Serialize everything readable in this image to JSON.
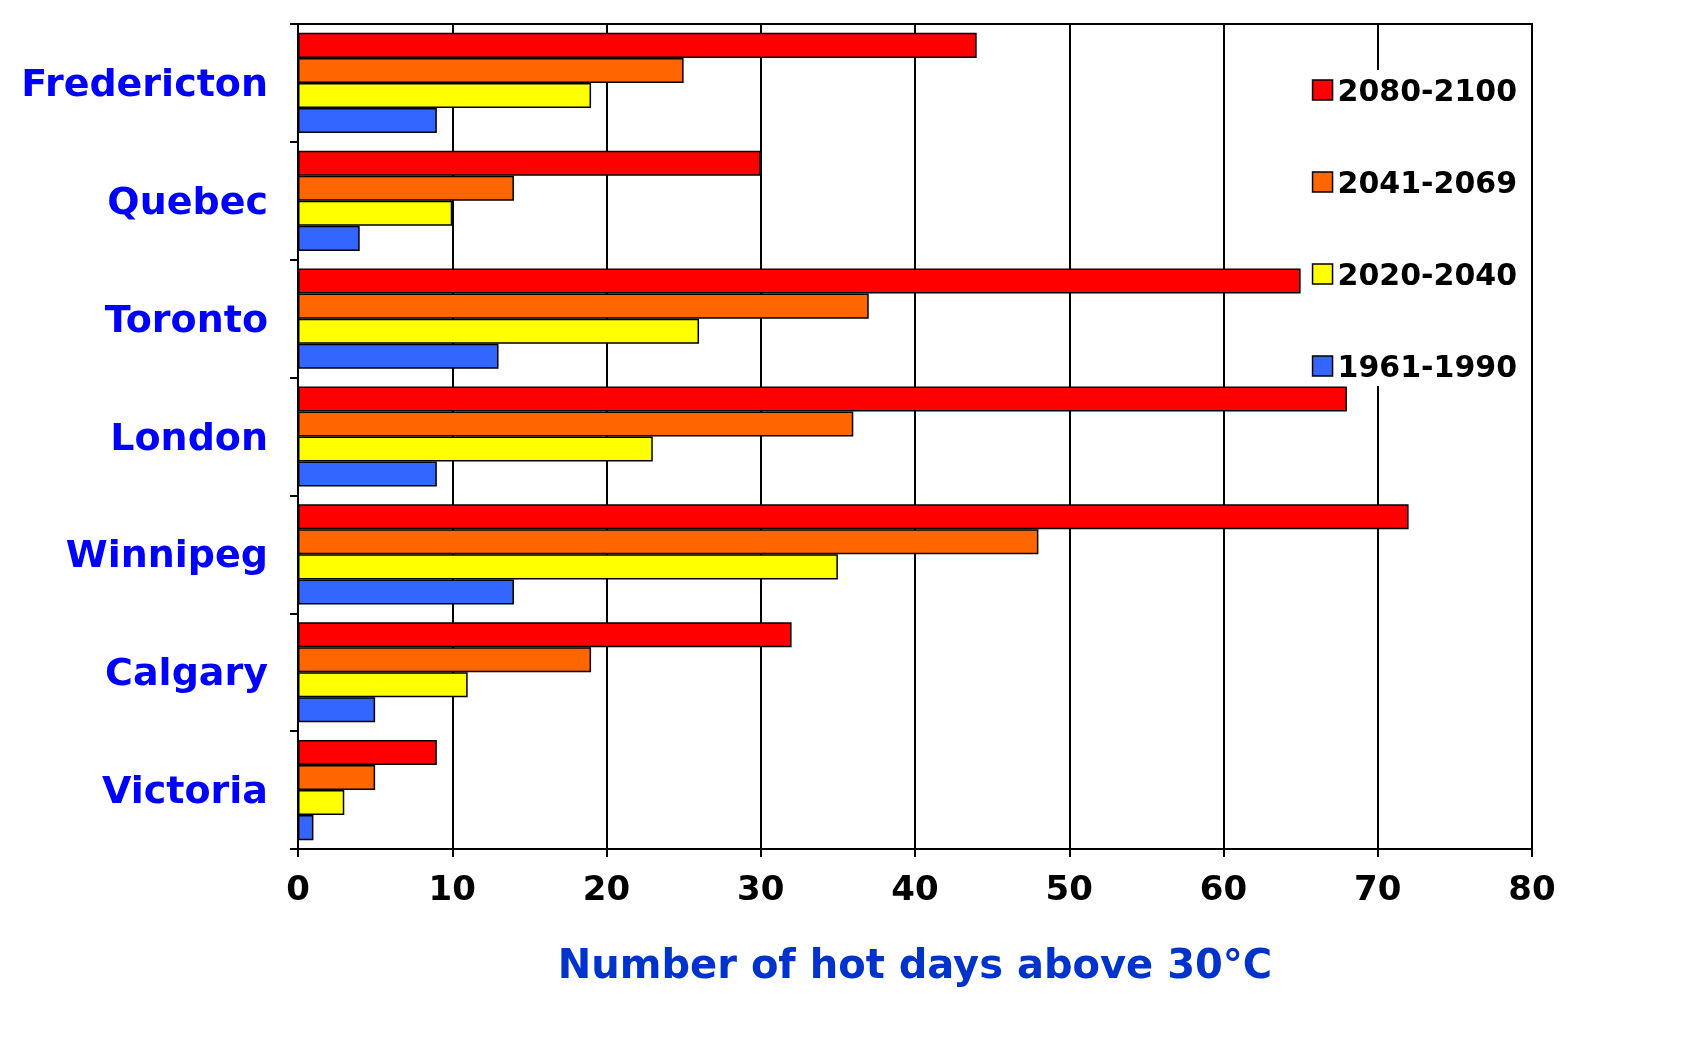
{
  "chart_data": {
    "type": "bar",
    "orientation": "horizontal",
    "xlabel": "Number of hot days above 30°C",
    "categories": [
      "Fredericton",
      "Quebec",
      "Toronto",
      "London",
      "Winnipeg",
      "Calgary",
      "Victoria"
    ],
    "series": [
      {
        "name": "2080-2100",
        "color": "#ff0000",
        "values": [
          44,
          30,
          65,
          68,
          72,
          32,
          9
        ]
      },
      {
        "name": "2041-2069",
        "color": "#ff6600",
        "values": [
          25,
          14,
          37,
          36,
          48,
          19,
          5
        ]
      },
      {
        "name": "2020-2040",
        "color": "#ffff00",
        "values": [
          19,
          10,
          26,
          23,
          35,
          11,
          3
        ]
      },
      {
        "name": "1961-1990",
        "color": "#3366ff",
        "values": [
          9,
          4,
          13,
          9,
          14,
          5,
          1
        ]
      }
    ],
    "xlim": [
      0,
      80
    ],
    "xticks": [
      0,
      10,
      20,
      30,
      40,
      50,
      60,
      70,
      80
    ],
    "grid": "x",
    "legend": "top right"
  }
}
